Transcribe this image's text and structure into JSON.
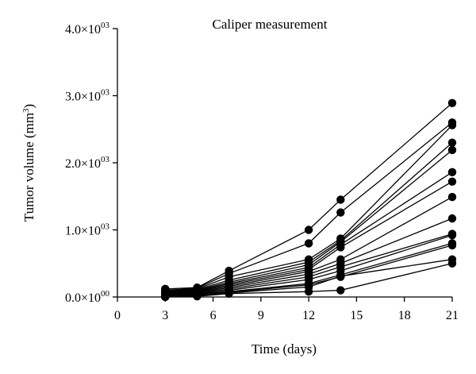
{
  "chart_data": {
    "type": "line",
    "title": "Caliper measurement",
    "xlabel": "Time (days)",
    "ylabel": {
      "text": "Tumor volume (mm",
      "sup": "3",
      "suffix": ")"
    },
    "xlim": [
      0,
      21
    ],
    "ylim": [
      0,
      4000
    ],
    "x_ticks": [
      {
        "value": 0,
        "label": "0"
      },
      {
        "value": 3,
        "label": "3"
      },
      {
        "value": 6,
        "label": "6"
      },
      {
        "value": 9,
        "label": "9"
      },
      {
        "value": 12,
        "label": "12"
      },
      {
        "value": 15,
        "label": "15"
      },
      {
        "value": 18,
        "label": "18"
      },
      {
        "value": 21,
        "label": "21"
      }
    ],
    "y_ticks": [
      {
        "value": 0,
        "mantissa": "0.0",
        "exp": "00"
      },
      {
        "value": 1000,
        "mantissa": "1.0",
        "exp": "03"
      },
      {
        "value": 2000,
        "mantissa": "2.0",
        "exp": "03"
      },
      {
        "value": 3000,
        "mantissa": "3.0",
        "exp": "03"
      },
      {
        "value": 4000,
        "mantissa": "4.0",
        "exp": "03"
      }
    ],
    "y_tick_times": "×10",
    "grid": false,
    "marker": "circle",
    "color": "#000000",
    "x": [
      3,
      5,
      7,
      12,
      14,
      21
    ],
    "series": [
      {
        "values": [
          120,
          140,
          390,
          1000,
          1450,
          2890
        ]
      },
      {
        "values": [
          100,
          130,
          350,
          800,
          1260,
          2600
        ]
      },
      {
        "values": [
          90,
          120,
          300,
          560,
          870,
          2560
        ]
      },
      {
        "values": [
          80,
          110,
          250,
          520,
          840,
          2300
        ]
      },
      {
        "values": [
          70,
          100,
          220,
          480,
          820,
          2190
        ]
      },
      {
        "values": [
          60,
          90,
          200,
          440,
          780,
          1860
        ]
      },
      {
        "values": [
          50,
          80,
          180,
          410,
          740,
          1720
        ]
      },
      {
        "values": [
          40,
          70,
          160,
          380,
          560,
          1490
        ]
      },
      {
        "values": [
          30,
          60,
          140,
          340,
          500,
          1170
        ]
      },
      {
        "values": [
          20,
          50,
          120,
          300,
          450,
          940
        ]
      },
      {
        "values": [
          10,
          40,
          100,
          260,
          390,
          920
        ]
      },
      {
        "values": [
          5,
          30,
          80,
          200,
          330,
          800
        ]
      },
      {
        "values": [
          3,
          20,
          70,
          180,
          300,
          770
        ]
      },
      {
        "values": [
          2,
          15,
          60,
          150,
          310,
          560
        ]
      },
      {
        "values": [
          1,
          10,
          50,
          80,
          100,
          500
        ]
      }
    ]
  }
}
